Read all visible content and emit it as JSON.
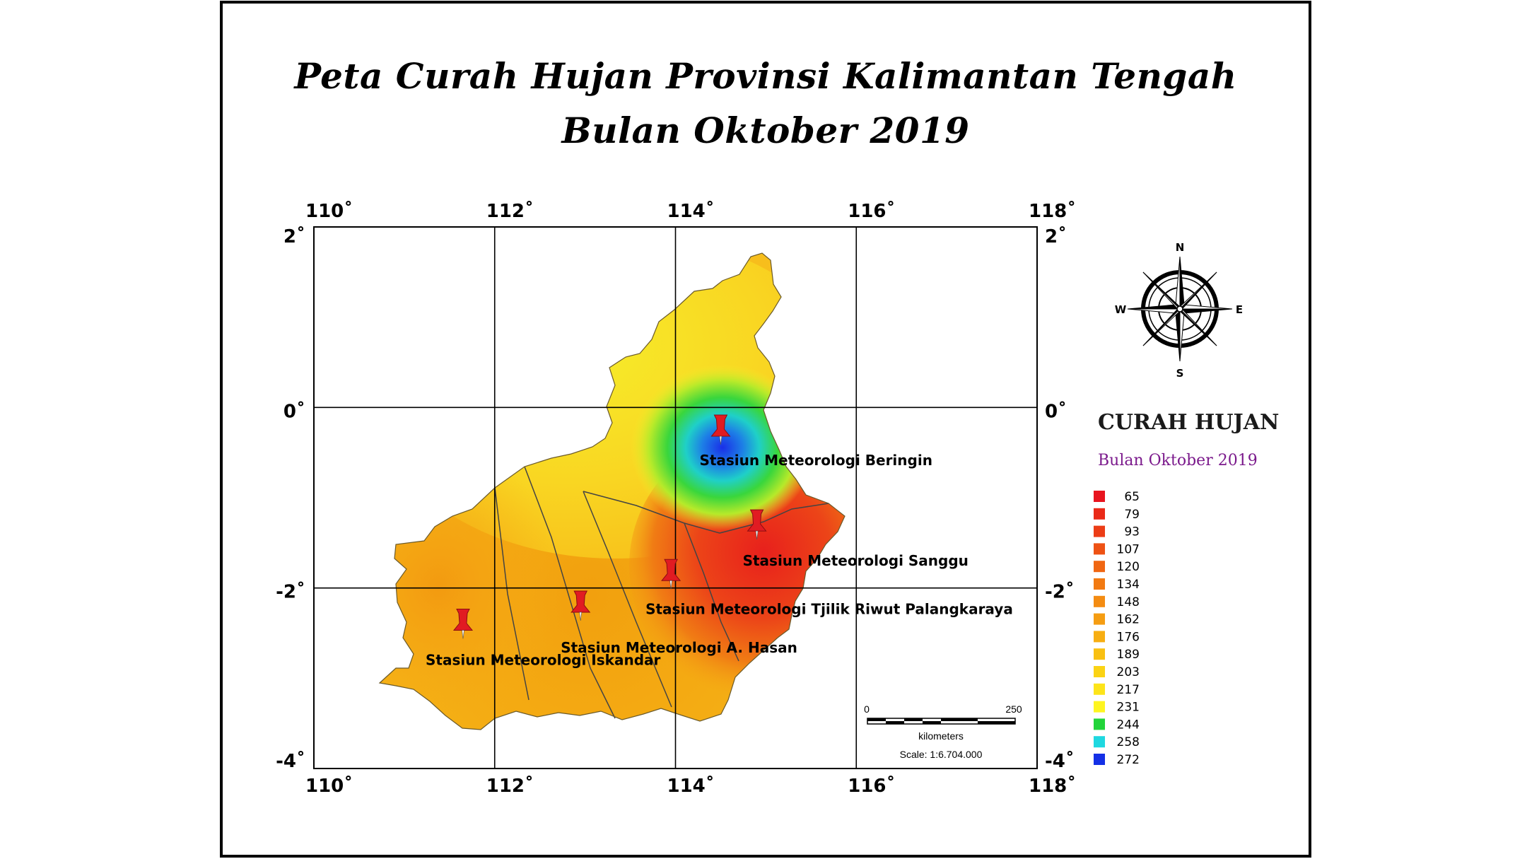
{
  "title": {
    "line1": "Peta Curah Hujan Provinsi Kalimantan Tengah",
    "line2": "Bulan Oktober 2019"
  },
  "grid": {
    "lon_ticks": [
      "110˚",
      "112˚",
      "114˚",
      "116˚",
      "118˚"
    ],
    "lat_ticks": [
      "2˚",
      "0˚",
      "-2˚",
      "-4˚"
    ]
  },
  "stations": [
    {
      "label": "Stasiun Meteorologi Beringin",
      "lon": 114.5,
      "lat": -0.35
    },
    {
      "label": "Stasiun Meteorologi Sanggu",
      "lon": 114.9,
      "lat": -1.4
    },
    {
      "label": "Stasiun Meteorologi  Tjilik Riwut Palangkaraya",
      "lon": 113.95,
      "lat": -1.95
    },
    {
      "label": "Stasiun Meteorologi A. Hasan",
      "lon": 112.95,
      "lat": -2.3
    },
    {
      "label": "Stasiun Meteorologi Iskandar",
      "lon": 111.65,
      "lat": -2.5
    }
  ],
  "compass": {
    "n": "N",
    "s": "S",
    "e": "E",
    "w": "W"
  },
  "legend": {
    "title": "CURAH HUJAN",
    "subtitle": "Bulan Oktober 2019",
    "items": [
      {
        "value": "65",
        "color": "#e8141e"
      },
      {
        "value": "79",
        "color": "#ea2a18"
      },
      {
        "value": "93",
        "color": "#ec3d16"
      },
      {
        "value": "107",
        "color": "#ee5214"
      },
      {
        "value": "120",
        "color": "#f06612"
      },
      {
        "value": "134",
        "color": "#f27a12"
      },
      {
        "value": "148",
        "color": "#f48c12"
      },
      {
        "value": "162",
        "color": "#f59d12"
      },
      {
        "value": "176",
        "color": "#f7ae12"
      },
      {
        "value": "189",
        "color": "#f9c012"
      },
      {
        "value": "203",
        "color": "#fbd314"
      },
      {
        "value": "217",
        "color": "#fde41a"
      },
      {
        "value": "231",
        "color": "#fef520"
      },
      {
        "value": "244",
        "color": "#22d43a"
      },
      {
        "value": "258",
        "color": "#1ed8e0"
      },
      {
        "value": "272",
        "color": "#1430e6"
      }
    ]
  },
  "scalebar": {
    "start": "0",
    "end": "250",
    "unit": "kilometers",
    "scale": "Scale: 1:6.704.000"
  }
}
